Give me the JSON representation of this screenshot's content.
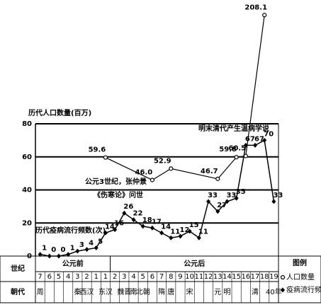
{
  "chart_data": {
    "type": "line",
    "title": "历代人口数量(百万)",
    "annotations": [
      "明末清代产生温病学说",
      "公元3世纪，张仲景",
      "《伤寒论》问世"
    ],
    "secondary_title": "历代疫病流行频数(次)",
    "row_labels": [
      "世纪",
      "朝代"
    ],
    "era_labels": [
      "公元前",
      "公元后"
    ],
    "categories": [
      "7",
      "6",
      "5",
      "4",
      "3",
      "2",
      "1",
      "1",
      "2",
      "3",
      "4",
      "5",
      "6",
      "7",
      "8",
      "9",
      "10",
      "11",
      "12",
      "13",
      "14",
      "15",
      "16",
      "17",
      "18",
      "19"
    ],
    "dynasties": [
      "周",
      null,
      null,
      null,
      "秦",
      "西汉",
      null,
      "东汉",
      null,
      "魏晋",
      "南",
      "北朝",
      null,
      "隋",
      "唐",
      null,
      "宋",
      null,
      null,
      "元",
      "明",
      null,
      null,
      "清",
      null,
      "40年"
    ],
    "series": [
      {
        "name": "人口数量",
        "marker": "circle",
        "color": "#000",
        "values": [
          null,
          null,
          null,
          null,
          null,
          null,
          null,
          59.6,
          null,
          null,
          null,
          null,
          46.0,
          null,
          52.9,
          null,
          null,
          null,
          null,
          46.7,
          null,
          59.8,
          60.5,
          null,
          208.1,
          null
        ],
        "value_labels": [
          null,
          null,
          null,
          null,
          null,
          null,
          null,
          "59.6",
          null,
          null,
          null,
          null,
          "46.0",
          null,
          "52.9",
          null,
          null,
          null,
          null,
          "46.7",
          null,
          "59.8",
          "60.5",
          null,
          "208.1",
          null
        ]
      },
      {
        "name": "疫病流行频次",
        "marker": "diamond",
        "color": "#000",
        "values": [
          1,
          0,
          0,
          1,
          3,
          4,
          5,
          14,
          16,
          26,
          22,
          18,
          17,
          14,
          11,
          12,
          15,
          11,
          33,
          27,
          33,
          35,
          67,
          67,
          70,
          33
        ]
      }
    ],
    "legend_title": "图例",
    "ylim": [
      0,
      80
    ],
    "yticks": [
      0,
      20,
      40,
      60,
      80
    ],
    "grid": true
  }
}
